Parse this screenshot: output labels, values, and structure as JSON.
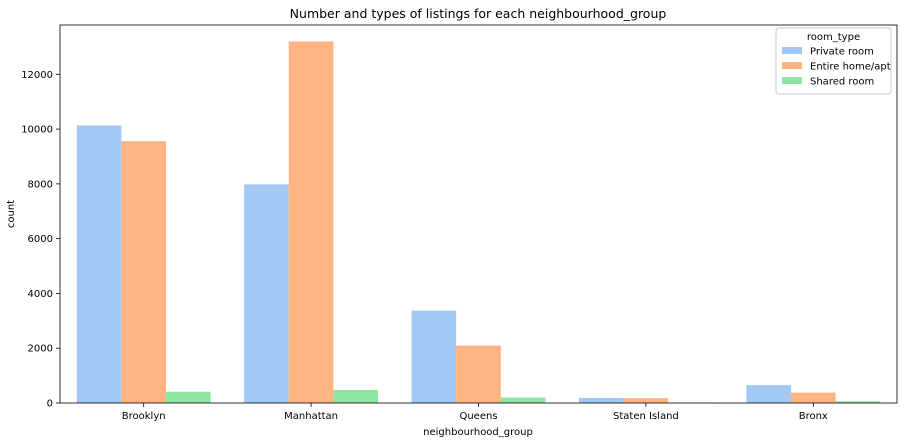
{
  "chart_data": {
    "type": "bar",
    "title": "Number and types of listings for each neighbourhood_group",
    "xlabel": "neighbourhood_group",
    "ylabel": "count",
    "categories": [
      "Brooklyn",
      "Manhattan",
      "Queens",
      "Staten Island",
      "Bronx"
    ],
    "ylim": [
      0,
      13800
    ],
    "yticks": [
      0,
      2000,
      4000,
      6000,
      8000,
      10000,
      12000
    ],
    "legend": {
      "title": "room_type",
      "position": "top-right"
    },
    "series": [
      {
        "name": "Private room",
        "color": "#a1c9f4",
        "values": [
          10132,
          7982,
          3372,
          188,
          652
        ]
      },
      {
        "name": "Entire home/apt",
        "color": "#ffb482",
        "values": [
          9559,
          13199,
          2096,
          176,
          379
        ]
      },
      {
        "name": "Shared room",
        "color": "#8de5a1",
        "values": [
          413,
          480,
          198,
          9,
          60
        ]
      }
    ],
    "grid": false
  }
}
